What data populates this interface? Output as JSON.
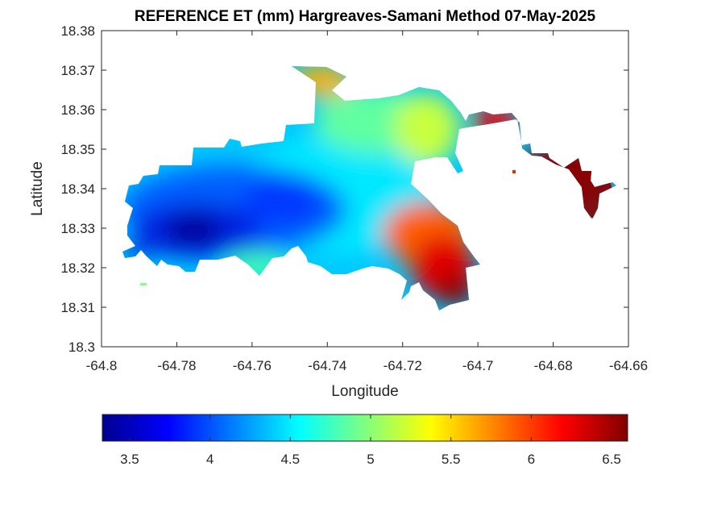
{
  "chart_data": {
    "type": "heatmap",
    "title": "REFERENCE ET (mm) Hargreaves-Samani Method  07-May-2025",
    "xlabel": "Longitude",
    "ylabel": "Latitude",
    "xlim": [
      -64.8,
      -64.66
    ],
    "ylim": [
      18.3,
      18.38
    ],
    "x_ticks": [
      -64.8,
      -64.78,
      -64.76,
      -64.74,
      -64.72,
      -64.7,
      -64.68,
      -64.66
    ],
    "x_tick_labels": [
      "-64.8",
      "-64.78",
      "-64.76",
      "-64.74",
      "-64.72",
      "-64.7",
      "-64.68",
      "-64.66"
    ],
    "y_ticks": [
      18.3,
      18.31,
      18.32,
      18.33,
      18.34,
      18.35,
      18.36,
      18.37,
      18.38
    ],
    "y_tick_labels": [
      "18.3",
      "18.31",
      "18.32",
      "18.33",
      "18.34",
      "18.35",
      "18.36",
      "18.37",
      "18.38"
    ],
    "grid": false,
    "colormap": "jet",
    "colorbar": {
      "orientation": "horizontal",
      "location": "below",
      "clim": [
        3.33,
        6.6
      ],
      "ticks": [
        3.5,
        4,
        4.5,
        5,
        5.5,
        6,
        6.5
      ],
      "tick_labels": [
        "3.5",
        "4",
        "4.5",
        "5",
        "5.5",
        "6",
        "6.5"
      ]
    },
    "field": {
      "min_value": 3.4,
      "min_location": [
        -64.775,
        18.329
      ],
      "max_value": 6.6,
      "max_location": [
        -64.671,
        18.339
      ],
      "west_value": 3.9,
      "center_value": 4.6,
      "north_value": 5.5,
      "southeast_value": 6.4
    }
  }
}
